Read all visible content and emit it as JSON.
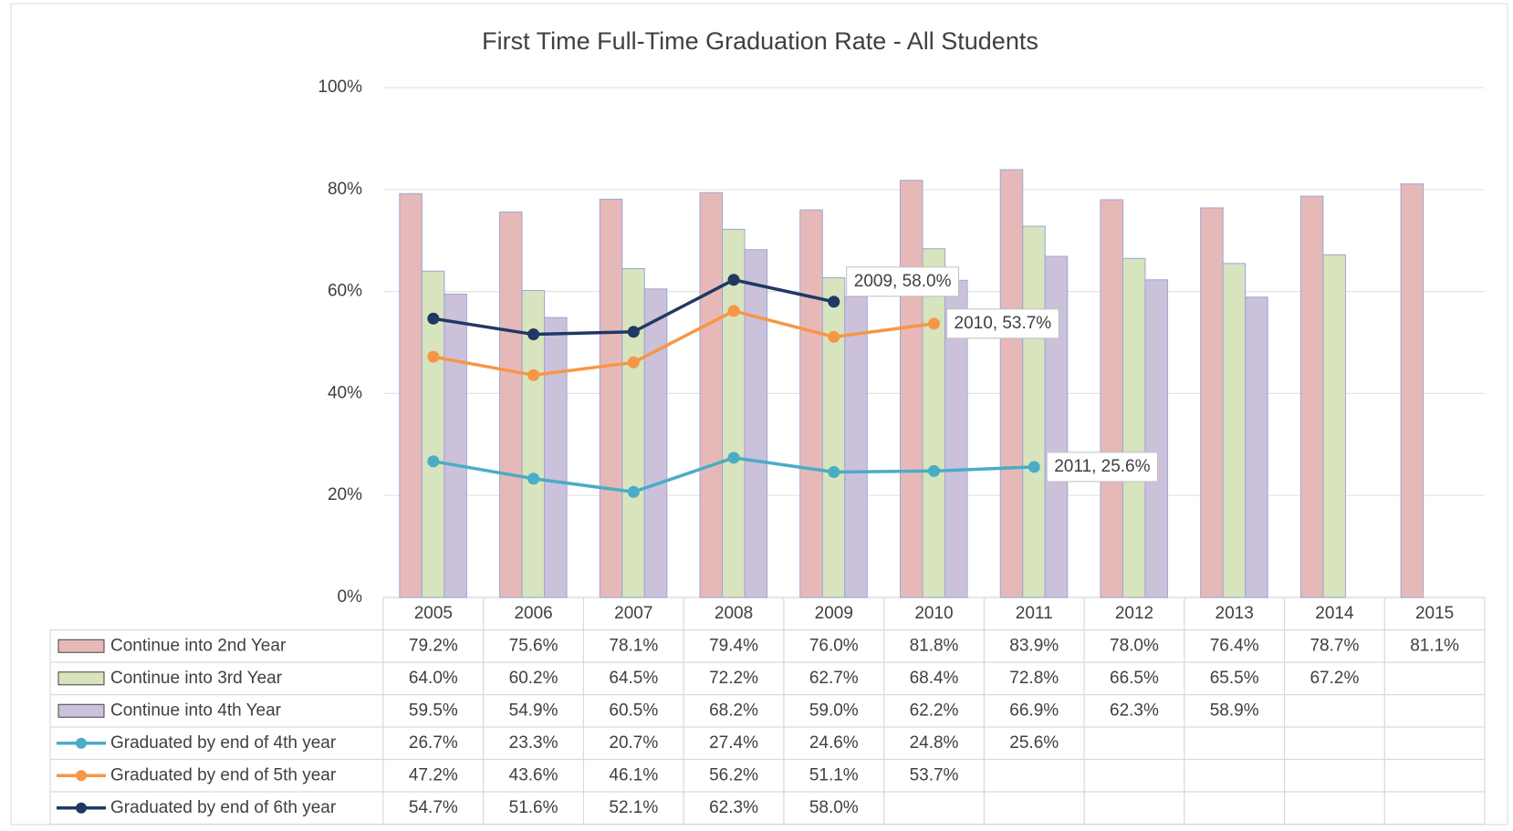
{
  "chart_data": {
    "type": "bar-line-table",
    "title": "First Time Full-Time Graduation Rate - All Students",
    "categories": [
      "2005",
      "2006",
      "2007",
      "2008",
      "2009",
      "2010",
      "2011",
      "2012",
      "2013",
      "2014",
      "2015"
    ],
    "ylim": [
      0,
      100
    ],
    "yticks": [
      {
        "value": 0,
        "label": "0%"
      },
      {
        "value": 20,
        "label": "20%"
      },
      {
        "value": 40,
        "label": "40%"
      },
      {
        "value": 60,
        "label": "60%"
      },
      {
        "value": 80,
        "label": "80%"
      },
      {
        "value": 100,
        "label": "100%"
      }
    ],
    "grid": true,
    "series": [
      {
        "name": "Continue into 2nd Year",
        "kind": "bar",
        "color": "#e6b9b8",
        "values": [
          79.2,
          75.6,
          78.1,
          79.4,
          76.0,
          81.8,
          83.9,
          78.0,
          76.4,
          78.7,
          81.1
        ],
        "value_labels": [
          "79.2%",
          "75.6%",
          "78.1%",
          "79.4%",
          "76.0%",
          "81.8%",
          "83.9%",
          "78.0%",
          "76.4%",
          "78.7%",
          "81.1%"
        ]
      },
      {
        "name": "Continue into 3rd Year",
        "kind": "bar",
        "color": "#d7e4bd",
        "values": [
          64.0,
          60.2,
          64.5,
          72.2,
          62.7,
          68.4,
          72.8,
          66.5,
          65.5,
          67.2,
          null
        ],
        "value_labels": [
          "64.0%",
          "60.2%",
          "64.5%",
          "72.2%",
          "62.7%",
          "68.4%",
          "72.8%",
          "66.5%",
          "65.5%",
          "67.2%",
          null
        ]
      },
      {
        "name": "Continue into 4th Year",
        "kind": "bar",
        "color": "#ccc1da",
        "values": [
          59.5,
          54.9,
          60.5,
          68.2,
          59.0,
          62.2,
          66.9,
          62.3,
          58.9,
          null,
          null
        ],
        "value_labels": [
          "59.5%",
          "54.9%",
          "60.5%",
          "68.2%",
          "59.0%",
          "62.2%",
          "66.9%",
          "62.3%",
          "58.9%",
          null,
          null
        ]
      },
      {
        "name": "Graduated by end of 4th year",
        "kind": "line",
        "color": "#4bacc6",
        "values": [
          26.7,
          23.3,
          20.7,
          27.4,
          24.6,
          24.8,
          25.6,
          null,
          null,
          null,
          null
        ],
        "value_labels": [
          "26.7%",
          "23.3%",
          "20.7%",
          "27.4%",
          "24.6%",
          "24.8%",
          "25.6%",
          null,
          null,
          null,
          null
        ],
        "callout": "2011, 25.6%"
      },
      {
        "name": "Graduated by end of 5th year",
        "kind": "line",
        "color": "#f79646",
        "values": [
          47.2,
          43.6,
          46.1,
          56.2,
          51.1,
          53.7,
          null,
          null,
          null,
          null,
          null
        ],
        "value_labels": [
          "47.2%",
          "43.6%",
          "46.1%",
          "56.2%",
          "51.1%",
          "53.7%",
          null,
          null,
          null,
          null,
          null
        ],
        "callout": "2010, 53.7%"
      },
      {
        "name": "Graduated by end of 6th year",
        "kind": "line",
        "color": "#203864",
        "values": [
          54.7,
          51.6,
          52.1,
          62.3,
          58.0,
          null,
          null,
          null,
          null,
          null,
          null
        ],
        "value_labels": [
          "54.7%",
          "51.6%",
          "52.1%",
          "62.3%",
          "58.0%",
          null,
          null,
          null,
          null,
          null,
          null
        ],
        "callout": "2009, 58.0%"
      }
    ]
  }
}
